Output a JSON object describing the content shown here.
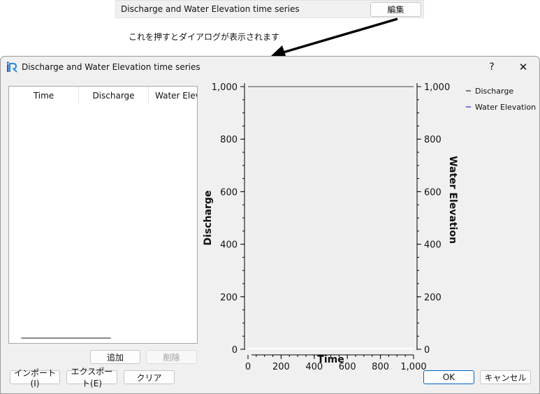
{
  "snippet": {
    "label": "Discharge and Water Elevation time series",
    "edit_button": "編集"
  },
  "annotation": {
    "note": "これを押すとダイアログが表示されます"
  },
  "dialog": {
    "title": "Discharge and Water Elevation time series",
    "help": "?",
    "close": "✕",
    "table": {
      "columns": [
        "Time",
        "Discharge",
        "Water Eleva"
      ]
    },
    "buttons": {
      "add": "追加",
      "delete": "削除",
      "import": "インポート(I)",
      "export": "エクスポート(E)",
      "clear": "クリア",
      "ok": "OK",
      "cancel": "キャンセル"
    }
  },
  "colors": {
    "discharge_line": "#000000",
    "water_elevation_line": "#0000cc",
    "accent": "#0067c0"
  },
  "chart_data": {
    "type": "line",
    "xlabel": "Time",
    "ylabel": "Discharge",
    "y2label": "Water Elevation",
    "xlim": [
      0,
      1000
    ],
    "ylim": [
      0,
      1000
    ],
    "y2lim": [
      0,
      1000
    ],
    "x_ticks": [
      "0",
      "200",
      "400",
      "600",
      "800",
      "1,000"
    ],
    "y_ticks": [
      "0",
      "200",
      "400",
      "600",
      "800",
      "1,000"
    ],
    "y2_ticks": [
      "0",
      "200",
      "400",
      "600",
      "800",
      "1,000"
    ],
    "legend_position": "top-right",
    "series": [
      {
        "name": "Discharge",
        "x": [],
        "y": []
      },
      {
        "name": "Water Elevation",
        "x": [],
        "y": []
      }
    ]
  }
}
